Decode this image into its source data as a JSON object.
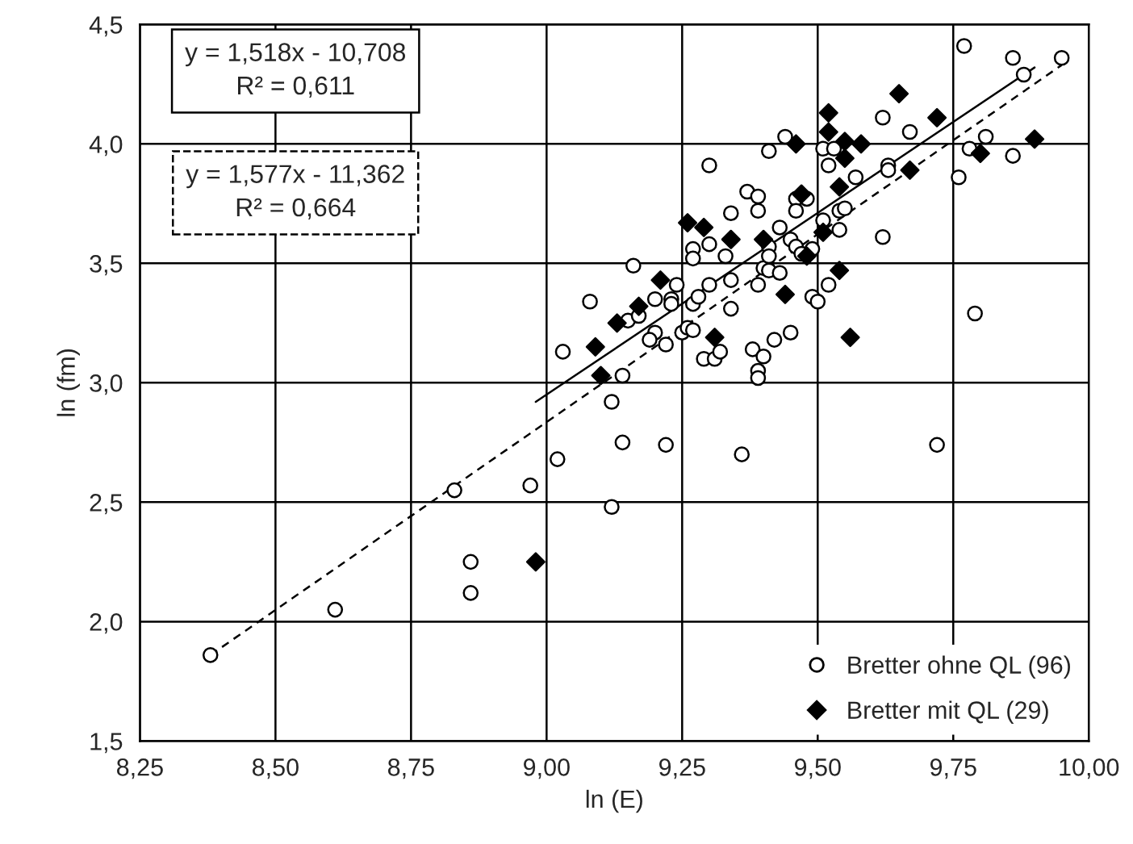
{
  "chart_data": {
    "type": "scatter",
    "xlabel": "ln (E)",
    "ylabel": "ln (fm)",
    "xlim": [
      8.25,
      10.0
    ],
    "xticks": [
      {
        "value": 8.25,
        "label": "8,25"
      },
      {
        "value": 8.5,
        "label": "8,50"
      },
      {
        "value": 8.75,
        "label": "8,75"
      },
      {
        "value": 9.0,
        "label": "9,00"
      },
      {
        "value": 9.25,
        "label": "9,25"
      },
      {
        "value": 9.5,
        "label": "9,50"
      },
      {
        "value": 9.75,
        "label": "9,75"
      },
      {
        "value": 10.0,
        "label": "10,00"
      }
    ],
    "ylim": [
      1.5,
      4.5
    ],
    "yticks": [
      {
        "value": 1.5,
        "label": "1,5"
      },
      {
        "value": 2.0,
        "label": "2,0"
      },
      {
        "value": 2.5,
        "label": "2,5"
      },
      {
        "value": 3.0,
        "label": "3,0"
      },
      {
        "value": 3.5,
        "label": "3,5"
      },
      {
        "value": 4.0,
        "label": "4,0"
      },
      {
        "value": 4.5,
        "label": "4,5"
      }
    ],
    "grid": true,
    "legend": "bottom right",
    "annotations": [
      "y = 1,518x - 10,708\nR² = 0,611",
      "y = 1,577x - 11,362\nR² = 0,664"
    ],
    "series": [
      {
        "name": "Bretter ohne QL (96)",
        "marker": "circle",
        "color": "#000000",
        "x": [
          8.38,
          8.61,
          8.83,
          8.86,
          8.86,
          8.97,
          9.02,
          9.12,
          9.14,
          9.22,
          9.36,
          9.12,
          9.14,
          9.03,
          9.08,
          9.15,
          9.17,
          9.2,
          9.2,
          9.19,
          9.22,
          9.23,
          9.24,
          9.23,
          9.25,
          9.26,
          9.27,
          9.27,
          9.28,
          9.3,
          9.29,
          9.31,
          9.32,
          9.34,
          9.34,
          9.38,
          9.4,
          9.39,
          9.39,
          9.39,
          9.4,
          9.41,
          9.42,
          9.16,
          9.3,
          9.41,
          9.37,
          9.39,
          9.39,
          9.34,
          9.27,
          9.27,
          9.3,
          9.33,
          9.41,
          9.77,
          9.86,
          9.95,
          9.88,
          9.62,
          9.67,
          9.44,
          9.51,
          9.53,
          9.52,
          9.78,
          9.81,
          9.86,
          9.63,
          9.63,
          9.76,
          9.57,
          9.46,
          9.48,
          9.46,
          9.54,
          9.55,
          9.43,
          9.51,
          9.54,
          9.62,
          9.45,
          9.46,
          9.41,
          9.49,
          9.47,
          9.43,
          9.79,
          9.72,
          9.52,
          9.49,
          9.5,
          9.45
        ],
        "values": [
          1.86,
          2.05,
          2.55,
          2.25,
          2.12,
          2.57,
          2.68,
          2.48,
          2.75,
          2.74,
          2.7,
          2.92,
          3.03,
          3.13,
          3.34,
          3.26,
          3.28,
          3.35,
          3.21,
          3.18,
          3.16,
          3.35,
          3.41,
          3.33,
          3.21,
          3.23,
          3.22,
          3.33,
          3.36,
          3.41,
          3.1,
          3.1,
          3.13,
          3.31,
          3.43,
          3.14,
          3.11,
          3.05,
          3.02,
          3.41,
          3.48,
          3.47,
          3.18,
          3.49,
          3.91,
          3.97,
          3.8,
          3.78,
          3.72,
          3.71,
          3.56,
          3.52,
          3.58,
          3.53,
          3.57,
          4.41,
          4.36,
          4.36,
          4.29,
          4.11,
          4.05,
          4.03,
          3.98,
          3.98,
          3.91,
          3.98,
          4.03,
          3.95,
          3.91,
          3.89,
          3.86,
          3.86,
          3.77,
          3.77,
          3.72,
          3.72,
          3.73,
          3.65,
          3.68,
          3.64,
          3.61,
          3.6,
          3.57,
          3.53,
          3.56,
          3.54,
          3.46,
          3.29,
          2.74,
          3.41,
          3.36,
          3.34,
          3.21
        ]
      },
      {
        "name": "Bretter mit QL (29)",
        "marker": "diamond",
        "color": "#000000",
        "x": [
          9.21,
          9.17,
          9.13,
          9.09,
          9.1,
          9.31,
          9.26,
          9.29,
          9.34,
          9.4,
          9.65,
          9.52,
          9.52,
          9.72,
          9.55,
          9.58,
          9.46,
          9.55,
          9.9,
          9.8,
          9.67,
          9.54,
          9.47,
          9.51,
          9.48,
          9.54,
          9.44,
          9.56,
          8.98
        ],
        "values": [
          3.43,
          3.32,
          3.25,
          3.15,
          3.03,
          3.19,
          3.67,
          3.65,
          3.6,
          3.6,
          4.21,
          4.13,
          4.05,
          4.11,
          4.01,
          4.0,
          4.0,
          3.94,
          4.02,
          3.96,
          3.89,
          3.82,
          3.79,
          3.63,
          3.53,
          3.47,
          3.37,
          3.19,
          2.25
        ]
      },
      {
        "type": "line",
        "color": "#000000",
        "line_style": "solid",
        "x": [
          8.98,
          9.9
        ],
        "values": [
          2.92,
          4.32
        ]
      },
      {
        "type": "line",
        "color": "#000000",
        "line_style": "dashed",
        "x": [
          8.38,
          9.95
        ],
        "values": [
          1.86,
          4.33
        ]
      }
    ]
  }
}
